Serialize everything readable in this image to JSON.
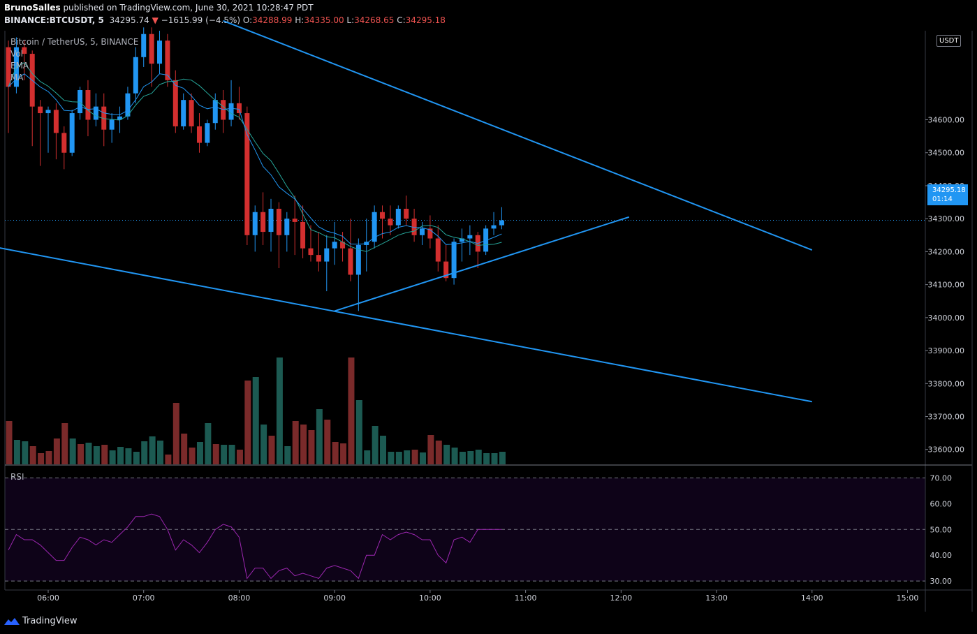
{
  "header": {
    "publisher": "BrunoSalles",
    "published_text": "published on TradingView.com, June 30, 2021 10:28:47 PDT",
    "symbol": "BINANCE:BTCUSDT, 5",
    "last": "34295.74",
    "arrow": "▼",
    "change": "−1615.99 (−4.5%)",
    "o_label": "O:",
    "o_value": "34288.99",
    "h_label": "H:",
    "h_value": "34335.00",
    "l_label": "L:",
    "l_value": "34268.65",
    "c_label": "C:",
    "c_value": "34295.18"
  },
  "legend": {
    "title": "Bitcoin / TetherUS, 5, BINANCE",
    "vol": "Vol",
    "ema": "EMA",
    "ma": "MA",
    "rsi": "RSI"
  },
  "price_tag": {
    "price": "34295.18",
    "countdown": "01:14"
  },
  "currency_badge": "USDT",
  "brand": "TradingView",
  "colors": {
    "up": "#2196f3",
    "down": "#d32f2f",
    "vol_up": "#1c5a52",
    "vol_down": "#7a2a2a",
    "ema": "#2196f3",
    "ma": "#26a69a",
    "trendline": "#2196f3",
    "rsi": "#9c27b0"
  },
  "chart_data": [
    {
      "type": "candlestick",
      "x_axis": {
        "ticks": [
          "06:00",
          "07:00",
          "08:00",
          "09:00",
          "10:00",
          "11:00",
          "12:00",
          "13:00",
          "14:00",
          "15:00"
        ],
        "interval_minutes": 5
      },
      "y_axis": {
        "ticks": [
          33600,
          33700,
          33800,
          33900,
          34000,
          34100,
          34200,
          34300,
          34400,
          34500,
          34600
        ],
        "tick_labels": [
          "33600.00",
          "33700.00",
          "33800.00",
          "33900.00",
          "34000.00",
          "34100.00",
          "34200.00",
          "34300.00",
          "34400.00",
          "34500.00",
          "34600.00"
        ],
        "range": [
          33555,
          34870
        ]
      },
      "start_time": "05:35",
      "candles": [
        [
          34820,
          34840,
          34560,
          34700
        ],
        [
          34700,
          34850,
          34680,
          34820
        ],
        [
          34820,
          34840,
          34720,
          34800
        ],
        [
          34800,
          34810,
          34520,
          34640
        ],
        [
          34640,
          34660,
          34460,
          34620
        ],
        [
          34620,
          34640,
          34500,
          34630
        ],
        [
          34630,
          34650,
          34480,
          34560
        ],
        [
          34560,
          34580,
          34450,
          34500
        ],
        [
          34500,
          34630,
          34490,
          34620
        ],
        [
          34620,
          34700,
          34600,
          34690
        ],
        [
          34690,
          34720,
          34550,
          34600
        ],
        [
          34600,
          34680,
          34580,
          34640
        ],
        [
          34640,
          34680,
          34520,
          34570
        ],
        [
          34570,
          34620,
          34530,
          34600
        ],
        [
          34600,
          34640,
          34560,
          34610
        ],
        [
          34610,
          34700,
          34600,
          34680
        ],
        [
          34680,
          34820,
          34650,
          34790
        ],
        [
          34790,
          34880,
          34760,
          34860
        ],
        [
          34860,
          34880,
          34700,
          34770
        ],
        [
          34770,
          34870,
          34740,
          34840
        ],
        [
          34840,
          34860,
          34700,
          34720
        ],
        [
          34720,
          34750,
          34560,
          34580
        ],
        [
          34580,
          34680,
          34570,
          34660
        ],
        [
          34660,
          34680,
          34560,
          34580
        ],
        [
          34580,
          34620,
          34500,
          34530
        ],
        [
          34530,
          34600,
          34520,
          34590
        ],
        [
          34590,
          34680,
          34570,
          34660
        ],
        [
          34660,
          34690,
          34560,
          34600
        ],
        [
          34600,
          34720,
          34580,
          34650
        ],
        [
          34650,
          34700,
          34600,
          34620
        ],
        [
          34620,
          34640,
          34220,
          34250
        ],
        [
          34250,
          34340,
          34200,
          34320
        ],
        [
          34320,
          34380,
          34220,
          34260
        ],
        [
          34260,
          34360,
          34200,
          34330
        ],
        [
          34330,
          34350,
          34150,
          34250
        ],
        [
          34250,
          34320,
          34200,
          34300
        ],
        [
          34300,
          34370,
          34190,
          34290
        ],
        [
          34290,
          34340,
          34180,
          34210
        ],
        [
          34210,
          34280,
          34170,
          34190
        ],
        [
          34190,
          34260,
          34140,
          34170
        ],
        [
          34170,
          34250,
          34080,
          34210
        ],
        [
          34210,
          34290,
          34160,
          34230
        ],
        [
          34230,
          34260,
          34170,
          34210
        ],
        [
          34210,
          34300,
          34110,
          34130
        ],
        [
          34130,
          34240,
          34020,
          34220
        ],
        [
          34220,
          34300,
          34140,
          34230
        ],
        [
          34230,
          34340,
          34210,
          34320
        ],
        [
          34320,
          34340,
          34240,
          34300
        ],
        [
          34300,
          34340,
          34250,
          34280
        ],
        [
          34280,
          34340,
          34270,
          34330
        ],
        [
          34330,
          34370,
          34280,
          34300
        ],
        [
          34300,
          34330,
          34230,
          34250
        ],
        [
          34250,
          34290,
          34220,
          34270
        ],
        [
          34270,
          34310,
          34210,
          34240
        ],
        [
          34240,
          34280,
          34140,
          34170
        ],
        [
          34170,
          34220,
          34110,
          34120
        ],
        [
          34120,
          34240,
          34100,
          34230
        ],
        [
          34230,
          34270,
          34170,
          34240
        ],
        [
          34240,
          34280,
          34190,
          34250
        ],
        [
          34250,
          34260,
          34150,
          34200
        ],
        [
          34200,
          34280,
          34190,
          34270
        ],
        [
          34270,
          34320,
          34250,
          34280
        ],
        [
          34280,
          34335,
          34268,
          34295
        ]
      ],
      "volume": [
        [
          62,
          "down"
        ],
        [
          35,
          "up"
        ],
        [
          33,
          "up"
        ],
        [
          26,
          "down"
        ],
        [
          16,
          "down"
        ],
        [
          19,
          "down"
        ],
        [
          37,
          "down"
        ],
        [
          59,
          "down"
        ],
        [
          37,
          "up"
        ],
        [
          29,
          "down"
        ],
        [
          31,
          "up"
        ],
        [
          26,
          "up"
        ],
        [
          28,
          "down"
        ],
        [
          20,
          "up"
        ],
        [
          25,
          "up"
        ],
        [
          23,
          "up"
        ],
        [
          18,
          "up"
        ],
        [
          33,
          "up"
        ],
        [
          40,
          "up"
        ],
        [
          34,
          "up"
        ],
        [
          14,
          "down"
        ],
        [
          88,
          "down"
        ],
        [
          44,
          "down"
        ],
        [
          24,
          "down"
        ],
        [
          32,
          "up"
        ],
        [
          59,
          "up"
        ],
        [
          29,
          "down"
        ],
        [
          28,
          "up"
        ],
        [
          28,
          "up"
        ],
        [
          21,
          "down"
        ],
        [
          120,
          "down"
        ],
        [
          125,
          "up"
        ],
        [
          57,
          "up"
        ],
        [
          41,
          "down"
        ],
        [
          153,
          "up"
        ],
        [
          26,
          "up"
        ],
        [
          62,
          "down"
        ],
        [
          57,
          "down"
        ],
        [
          49,
          "down"
        ],
        [
          79,
          "up"
        ],
        [
          64,
          "down"
        ],
        [
          32,
          "down"
        ],
        [
          30,
          "down"
        ],
        [
          153,
          "down"
        ],
        [
          92,
          "up"
        ],
        [
          20,
          "up"
        ],
        [
          55,
          "up"
        ],
        [
          41,
          "up"
        ],
        [
          18,
          "up"
        ],
        [
          18,
          "up"
        ],
        [
          20,
          "up"
        ],
        [
          21,
          "down"
        ],
        [
          17,
          "up"
        ],
        [
          42,
          "down"
        ],
        [
          34,
          "down"
        ],
        [
          28,
          "up"
        ],
        [
          24,
          "up"
        ],
        [
          18,
          "up"
        ],
        [
          19,
          "up"
        ],
        [
          21,
          "up"
        ],
        [
          16,
          "up"
        ],
        [
          16,
          "up"
        ],
        [
          18,
          "up"
        ]
      ],
      "rsi": [
        42,
        48,
        46,
        46,
        44,
        41,
        38,
        38,
        43,
        47,
        46,
        44,
        46,
        45,
        48,
        51,
        55,
        55,
        56,
        55,
        50,
        42,
        46,
        44,
        41,
        45,
        50,
        52,
        51,
        47,
        31,
        35,
        35,
        31,
        34,
        35,
        32,
        33,
        32,
        31,
        35,
        36,
        35,
        34,
        31,
        40,
        40,
        48,
        46,
        48,
        49,
        48,
        46,
        46,
        40,
        37,
        46,
        47,
        45,
        50,
        50,
        50,
        50
      ],
      "rsi_levels": [
        30,
        50,
        70
      ],
      "rsi_axis_ticks": [
        30,
        40,
        50,
        60,
        70
      ],
      "rsi_axis_labels": [
        "30.00",
        "40.00",
        "50.00",
        "60.00",
        "70.00"
      ],
      "rsi_range": [
        26.5,
        75
      ],
      "trendlines": [
        {
          "from": [
            "05:20",
            34220
          ],
          "to": [
            "14:00",
            33745
          ]
        },
        {
          "from": [
            "07:50",
            34900
          ],
          "to": [
            "14:00",
            34205
          ]
        },
        {
          "from": [
            "09:00",
            34020
          ],
          "to": [
            "12:05",
            34305
          ]
        }
      ],
      "last_price_line": 34295.18
    }
  ]
}
